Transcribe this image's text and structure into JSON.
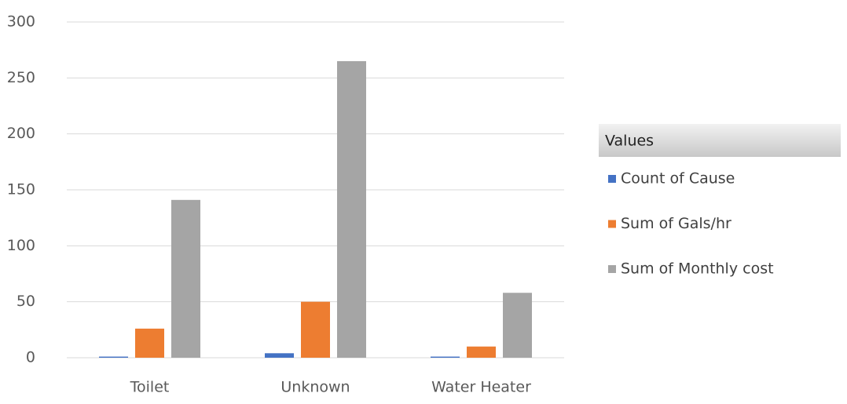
{
  "chart_data": {
    "type": "bar",
    "categories": [
      "Toilet",
      "Unknown",
      "Water Heater"
    ],
    "series": [
      {
        "name": "Count of Cause",
        "color": "#4472c4",
        "values": [
          1,
          4,
          1
        ]
      },
      {
        "name": "Sum of Gals/hr",
        "color": "#ed7d31",
        "values": [
          26,
          50,
          10
        ]
      },
      {
        "name": "Sum of Monthly cost",
        "color": "#a5a5a5",
        "values": [
          141,
          265,
          58
        ]
      }
    ],
    "ylim": [
      0,
      300
    ],
    "yticks": [
      0,
      50,
      100,
      150,
      200,
      250,
      300
    ],
    "grid": true,
    "legend_title": "Values",
    "legend": "right"
  }
}
